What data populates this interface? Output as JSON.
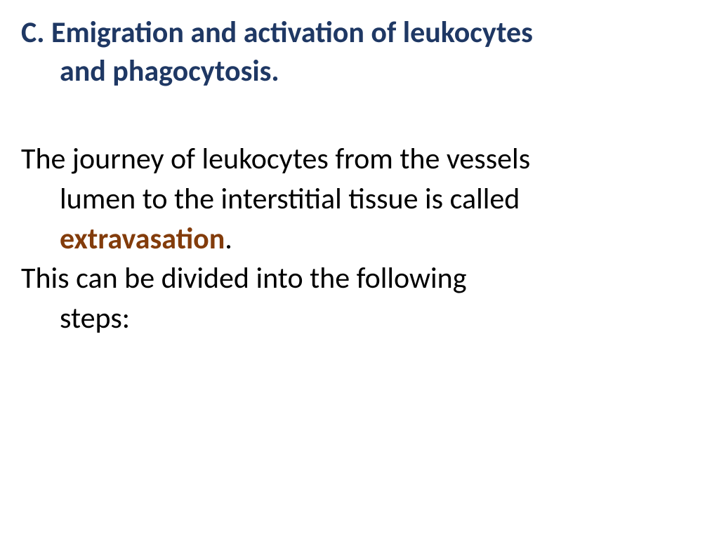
{
  "heading": {
    "prefix": "C.",
    "line1": "Emigration and activation of leukocytes",
    "line2": "and phagocytosis.",
    "color": "#1f3864",
    "fontsize": 42
  },
  "paragraph1": {
    "text_before": "The journey of leukocytes from the vessels lumen to the interstitial tissue is called ",
    "highlight_word": "extravasation",
    "text_after": ".",
    "highlight_color": "#833c0b"
  },
  "paragraph2": {
    "line1": "This can be divided into the following",
    "line2": "steps:"
  },
  "styling": {
    "body_fontsize": 42,
    "body_color": "#000000",
    "background_color": "#ffffff",
    "font_family": "Calibri"
  }
}
